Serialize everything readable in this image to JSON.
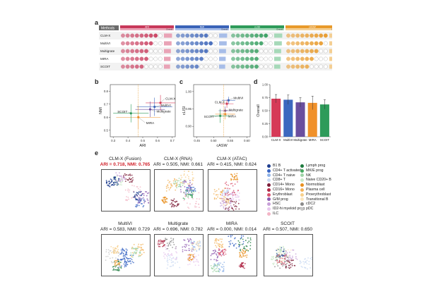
{
  "panels": {
    "a": "a",
    "b": "b",
    "c": "c",
    "d": "d",
    "e": "e"
  },
  "table": {
    "methods_header": "Methods",
    "groups": [
      {
        "name": "ARI",
        "color": "#c8385a",
        "light": "#e9a3b6"
      },
      {
        "name": "NMI",
        "color": "#3a63b8",
        "light": "#a7bde8"
      },
      {
        "name": "cLISI",
        "color": "#2e9b5a",
        "light": "#a6d9b8"
      },
      {
        "name": "cASW",
        "color": "#e89a2a",
        "light": "#f4cf93"
      }
    ],
    "overall_label": "Overall",
    "rows": [
      {
        "method": "CLM-X",
        "overall": "0.733"
      },
      {
        "method": "MultiVI",
        "overall": "0.710"
      },
      {
        "method": "Multigrate",
        "overall": "0.660"
      },
      {
        "method": "MIRA",
        "overall": "0.645"
      },
      {
        "method": "SCOIT",
        "overall": "0.625"
      }
    ]
  },
  "panel_b": {
    "xlabel": "ARI",
    "ylabel": "NMI",
    "xticks": [
      "0.3",
      "0.4",
      "0.5",
      "0.6",
      "0.7"
    ],
    "yticks": [
      "0.5",
      "0.6",
      "0.7",
      "0.8"
    ],
    "labels": [
      "CLM-X",
      "MultiVI",
      "Multigrate",
      "MIRA",
      "SCOIT"
    ]
  },
  "panel_c": {
    "xlabel": "cASW",
    "ylabel": "cLISI",
    "xticks": [
      "0.45",
      "0.50",
      "0.55",
      "0.60"
    ],
    "yticks": [
      "0.90",
      "0.95",
      "1.00"
    ],
    "labels": [
      "MultiVI",
      "CLM-X",
      "Multigrate",
      "MIRA",
      "SCOIT"
    ]
  },
  "chart_data": [
    {
      "type": "bar",
      "ylabel": "Overall",
      "categories": [
        "CLM-X",
        "MultiVI",
        "Multigrate",
        "MIRA",
        "SCOIT"
      ],
      "values": [
        0.73,
        0.71,
        0.66,
        0.65,
        0.62
      ],
      "errors": [
        0.08,
        0.09,
        0.09,
        0.13,
        0.09
      ],
      "colors": [
        "#d63a57",
        "#3c68bf",
        "#6a4e9e",
        "#f0912a",
        "#2e9b5a"
      ],
      "ylim": [
        0,
        1.0
      ],
      "yticks": [
        "0.00",
        "0.25",
        "0.50",
        "0.75",
        "1.00"
      ]
    }
  ],
  "umaps": [
    {
      "title": "CLM-X (Fusion)",
      "metrics": "ARI = 0.718, NMI: 0.765",
      "highlight": true
    },
    {
      "title": "CLM-X (RNA)",
      "metrics": "ARI = 0.505, NMI: 0.661",
      "highlight": false
    },
    {
      "title": "CLM-X (ATAC)",
      "metrics": "ARI = 0.415, NMI: 0.624",
      "highlight": false
    },
    {
      "title": "MultiVI",
      "metrics": "ARI = 0.583, NMI: 0.729",
      "highlight": false
    },
    {
      "title": "Multigrate",
      "metrics": "ARI = 0.696, NMI: 0.782",
      "highlight": false
    },
    {
      "title": "MIRA",
      "metrics": "ARI = 0.000, NMI: 0.014",
      "highlight": false
    },
    {
      "title": "SCOIT",
      "metrics": "ARI = 0.507, NMI: 0.650",
      "highlight": false
    }
  ],
  "legend_left": [
    {
      "label": "B1 B",
      "color": "#1f3e8f"
    },
    {
      "label": "CD4+ T activated",
      "color": "#3a66c4"
    },
    {
      "label": "CD4+ T naive",
      "color": "#8fb3e8"
    },
    {
      "label": "CD8+ T",
      "color": "#c9d9f2"
    },
    {
      "label": "CD14+ Mono",
      "color": "#7d1f3a"
    },
    {
      "label": "CD16+ Mono",
      "color": "#b02a48"
    },
    {
      "label": "Erythroblast",
      "color": "#d9536e"
    },
    {
      "label": "G/M prog",
      "color": "#8e5ab0"
    },
    {
      "label": "HSC",
      "color": "#c7a0d8"
    },
    {
      "label": "ID2-hi myeloid prog",
      "color": "#e7c7ee"
    },
    {
      "label": "ILC",
      "color": "#f3b6c6"
    }
  ],
  "legend_right": [
    {
      "label": "Lymph prog",
      "color": "#1e7a3e"
    },
    {
      "label": "MK/E prog",
      "color": "#45a85f"
    },
    {
      "label": "NK",
      "color": "#9fd4a8"
    },
    {
      "label": "Naive CD20+ B",
      "color": "#c9e9c8"
    },
    {
      "label": "Normoblast",
      "color": "#e8901f"
    },
    {
      "label": "Plasma cell",
      "color": "#f2b35a"
    },
    {
      "label": "Proerythroblast",
      "color": "#f7d08c"
    },
    {
      "label": "Transitional B",
      "color": "#fbe6bd"
    },
    {
      "label": "cDC2",
      "color": "#8a8a8a"
    },
    {
      "label": "pDC",
      "color": "#c8c8c8"
    }
  ]
}
